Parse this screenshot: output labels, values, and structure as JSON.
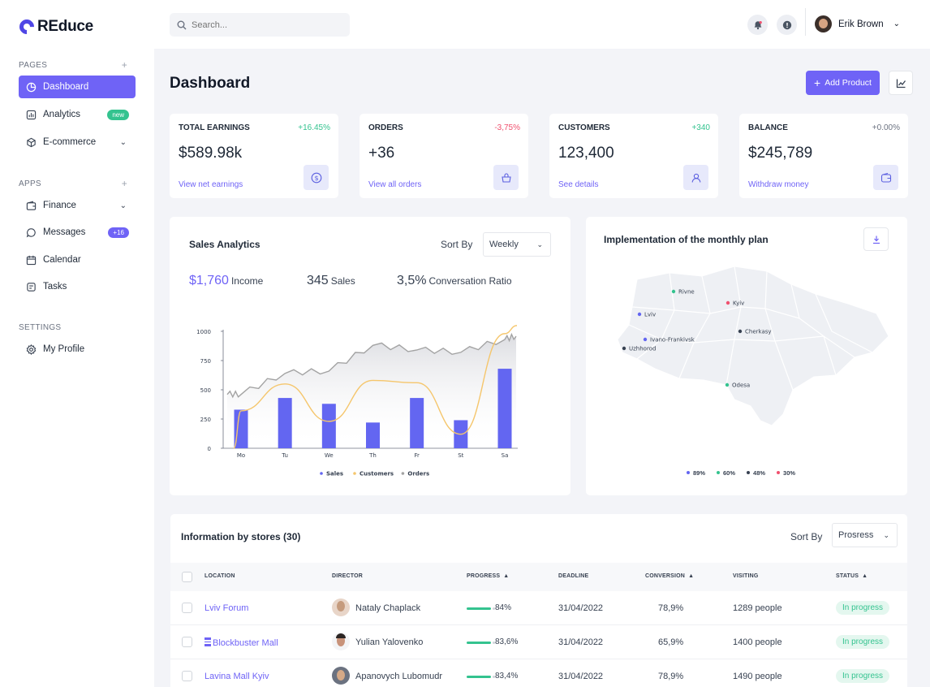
{
  "app": {
    "name": "REduce"
  },
  "sidebar": {
    "pages_label": "PAGES",
    "apps_label": "APPS",
    "settings_label": "SETTINGS",
    "pages": [
      {
        "label": "Dashboard",
        "icon": "pie-chart-icon",
        "active": true
      },
      {
        "label": "Analytics",
        "icon": "analytics-icon",
        "badge": "new"
      },
      {
        "label": "E-commerce",
        "icon": "cube-icon"
      }
    ],
    "apps": [
      {
        "label": "Finance",
        "icon": "wallet-icon"
      },
      {
        "label": "Messages",
        "icon": "chat-icon",
        "badge": "+16"
      },
      {
        "label": "Calendar",
        "icon": "calendar-icon"
      },
      {
        "label": "Tasks",
        "icon": "tasks-icon"
      }
    ],
    "settings": [
      {
        "label": "My Profile",
        "icon": "gear-icon"
      }
    ]
  },
  "header": {
    "search_placeholder": "Search...",
    "user_name": "Erik Brown"
  },
  "main": {
    "title": "Dashboard",
    "add_product_label": "Add Product",
    "stats": [
      {
        "title": "TOTAL EARNINGS",
        "change": "+16.45%",
        "change_color": "#34c38f",
        "value": "$589.98k",
        "link": "View net earnings",
        "icon": "dollar-icon"
      },
      {
        "title": "ORDERS",
        "change": "-3,75%",
        "change_color": "#f0506e",
        "value": "+36",
        "link": "View all orders",
        "icon": "basket-icon"
      },
      {
        "title": "CUSTOMERS",
        "change": "+340",
        "change_color": "#34c38f",
        "value": "123,400",
        "link": "See details",
        "icon": "user-icon"
      },
      {
        "title": "BALANCE",
        "change": "+0.00%",
        "change_color": "#6b7280",
        "value": "$245,789",
        "link": "Withdraw money",
        "icon": "wallet-icon"
      }
    ]
  },
  "sales": {
    "title": "Sales Analytics",
    "sort_label": "Sort By",
    "sort_value": "Weekly",
    "income_value": "$1,760",
    "income_label": "Income",
    "sales_value": "345",
    "sales_label": "Sales",
    "ratio_value": "3,5%",
    "ratio_label": "Conversation Ratio"
  },
  "chart_data": {
    "type": "bar",
    "categories": [
      "Mo",
      "Tu",
      "We",
      "Th",
      "Fr",
      "St",
      "Sa"
    ],
    "yticks": [
      "1000",
      "750",
      "500",
      "250",
      "0"
    ],
    "ylim": [
      0,
      1000
    ],
    "series": [
      {
        "name": "Sales",
        "type": "bar",
        "color": "#6366f1",
        "values": [
          330,
          430,
          380,
          220,
          430,
          240,
          680
        ]
      },
      {
        "name": "Customers",
        "type": "line",
        "color": "#f5c66c",
        "values": [
          320,
          550,
          230,
          580,
          560,
          120,
          980
        ]
      },
      {
        "name": "Orders",
        "type": "area",
        "color": "#a3a3a3",
        "values": [
          460,
          640,
          660,
          880,
          840,
          820,
          930
        ]
      }
    ],
    "legend": "bottom"
  },
  "map": {
    "title": "Implementation of the monthly plan",
    "cities": [
      {
        "name": "Rivne",
        "color": "#34c38f"
      },
      {
        "name": "Kyiv",
        "color": "#f0506e"
      },
      {
        "name": "Lviv",
        "color": "#6366f1"
      },
      {
        "name": "Cherkasy",
        "color": "#374151"
      },
      {
        "name": "Ivano-Frankivsk",
        "color": "#6366f1"
      },
      {
        "name": "Uzhhorod",
        "color": "#374151"
      },
      {
        "name": "Odesa",
        "color": "#34c38f"
      }
    ],
    "legend": [
      {
        "label": "89%",
        "color": "#6366f1"
      },
      {
        "label": "60%",
        "color": "#34c38f"
      },
      {
        "label": "48%",
        "color": "#374151"
      },
      {
        "label": "30%",
        "color": "#f0506e"
      }
    ]
  },
  "stores": {
    "title": "Information by stores (30)",
    "sort_label": "Sort By",
    "sort_value": "Prosress",
    "columns": [
      "LOCATION",
      "DIRECTOR",
      "PROGRESS",
      "DEADLINE",
      "CONVERSION",
      "VISITING",
      "STATUS"
    ],
    "rows": [
      {
        "location": "Lviv Forum",
        "director": "Nataly Chaplack",
        "progress": "84%",
        "deadline": "31/04/2022",
        "conversion": "78,9%",
        "visiting": "1289 people",
        "status": "In progress"
      },
      {
        "location": "Blockbuster Mall",
        "director": "Yulian Yalovenko",
        "progress": "83,6%",
        "deadline": "31/04/2022",
        "conversion": "65,9%",
        "visiting": "1400 people",
        "status": "In progress"
      },
      {
        "location": "Lavina Mall Kyiv",
        "director": "Apanovych Lubomudr",
        "progress": "83,4%",
        "deadline": "31/04/2022",
        "conversion": "78,9%",
        "visiting": "1490 people",
        "status": "In progress"
      }
    ]
  }
}
